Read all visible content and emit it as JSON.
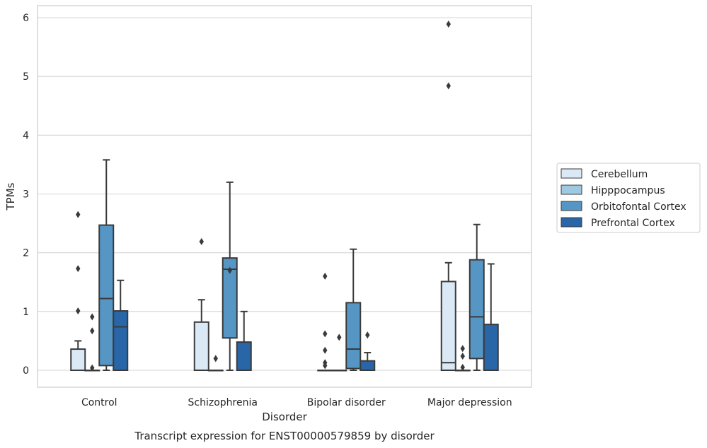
{
  "caption": "Transcript expression for ENST00000579859 by disorder",
  "chart_data": {
    "type": "box",
    "xlabel": "Disorder",
    "ylabel": "TPMs",
    "ylim": [
      -0.3,
      6.2
    ],
    "yticks": [
      0,
      1,
      2,
      3,
      4,
      5,
      6
    ],
    "grid": true,
    "legend_position": "right",
    "categories": [
      "Control",
      "Schizophrenia",
      "Bipolar disorder",
      "Major depression"
    ],
    "series": [
      {
        "name": "Cerebellum",
        "color": "#dbe9f6",
        "boxes": [
          {
            "q1": 0,
            "median": 0,
            "q3": 0.36,
            "whisker_low": 0,
            "whisker_high": 0.5,
            "outliers": [
              1.01,
              1.73,
              2.65
            ]
          },
          {
            "q1": 0,
            "median": 0,
            "q3": 0.82,
            "whisker_low": 0,
            "whisker_high": 1.2,
            "outliers": [
              2.19
            ]
          },
          {
            "q1": 0,
            "median": 0,
            "q3": 0,
            "whisker_low": 0,
            "whisker_high": 0,
            "outliers": [
              0.08,
              0.13,
              0.34,
              0.62,
              1.6
            ]
          },
          {
            "q1": 0,
            "median": 0.13,
            "q3": 1.51,
            "whisker_low": 0,
            "whisker_high": 1.83,
            "outliers": [
              4.84,
              5.89
            ]
          }
        ]
      },
      {
        "name": "Hipppocampus",
        "color": "#9ecae1",
        "boxes": [
          {
            "q1": 0,
            "median": 0,
            "q3": 0,
            "whisker_low": 0,
            "whisker_high": 0,
            "outliers": [
              0.04,
              0.67,
              0.91
            ]
          },
          {
            "q1": 0,
            "median": 0,
            "q3": 0,
            "whisker_low": 0,
            "whisker_high": 0,
            "outliers": [
              0.2
            ]
          },
          {
            "q1": 0,
            "median": 0,
            "q3": 0,
            "whisker_low": 0,
            "whisker_high": 0,
            "outliers": [
              0.56
            ]
          },
          {
            "q1": 0,
            "median": 0,
            "q3": 0,
            "whisker_low": 0,
            "whisker_high": 0,
            "outliers": [
              0.05,
              0.24,
              0.37
            ]
          }
        ]
      },
      {
        "name": "Orbitofontal Cortex",
        "color": "#5596c5",
        "boxes": [
          {
            "q1": 0.08,
            "median": 1.22,
            "q3": 2.47,
            "whisker_low": 0,
            "whisker_high": 3.58,
            "outliers": []
          },
          {
            "q1": 0.55,
            "median": 1.72,
            "q3": 1.91,
            "whisker_low": 0,
            "whisker_high": 3.2,
            "outliers": [
              1.7
            ]
          },
          {
            "q1": 0.03,
            "median": 0.36,
            "q3": 1.15,
            "whisker_low": 0,
            "whisker_high": 2.06,
            "outliers": []
          },
          {
            "q1": 0.2,
            "median": 0.91,
            "q3": 1.88,
            "whisker_low": 0,
            "whisker_high": 2.48,
            "outliers": []
          }
        ]
      },
      {
        "name": "Prefrontal Cortex",
        "color": "#2866a8",
        "boxes": [
          {
            "q1": 0,
            "median": 0.74,
            "q3": 1.01,
            "whisker_low": 0,
            "whisker_high": 1.53,
            "outliers": []
          },
          {
            "q1": 0,
            "median": 0,
            "q3": 0.48,
            "whisker_low": 0,
            "whisker_high": 1.0,
            "outliers": []
          },
          {
            "q1": 0,
            "median": 0,
            "q3": 0.16,
            "whisker_low": 0,
            "whisker_high": 0.3,
            "outliers": [
              0.6
            ]
          },
          {
            "q1": 0,
            "median": 0,
            "q3": 0.78,
            "whisker_low": 0,
            "whisker_high": 1.81,
            "outliers": []
          }
        ]
      }
    ]
  }
}
